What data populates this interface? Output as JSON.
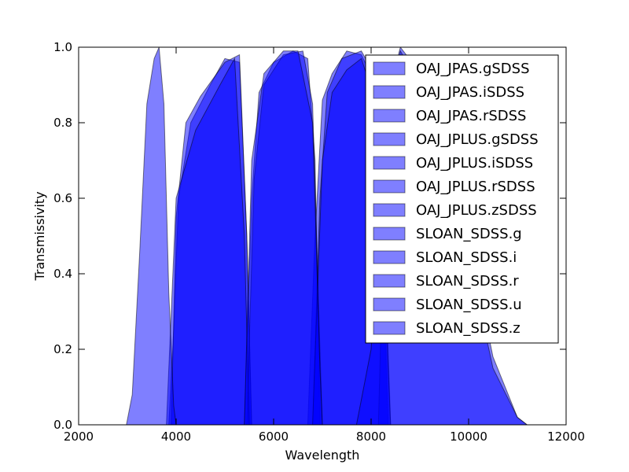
{
  "chart_data": {
    "type": "area",
    "xlabel": "Wavelength",
    "ylabel": "Transmissivity",
    "xlim": [
      2000,
      12000
    ],
    "ylim": [
      0,
      1.0
    ],
    "x_ticks": [
      2000,
      4000,
      6000,
      8000,
      10000,
      12000
    ],
    "x_tick_labels": [
      "2000",
      "4000",
      "6000",
      "8000",
      "10000",
      "12000"
    ],
    "y_ticks": [
      0,
      0.2,
      0.4,
      0.6,
      0.8,
      1.0
    ],
    "y_tick_labels": [
      "0.0",
      "0.2",
      "0.4",
      "0.6",
      "0.8",
      "1.0"
    ],
    "grid": false,
    "legend_position": "top-right",
    "fill_color": "#0000ff",
    "series": [
      {
        "name": "OAJ_JPAS.gSDSS",
        "points": [
          [
            3850,
            0
          ],
          [
            3950,
            0.25
          ],
          [
            4050,
            0.6
          ],
          [
            4300,
            0.8
          ],
          [
            4700,
            0.9
          ],
          [
            5000,
            0.97
          ],
          [
            5300,
            0.96
          ],
          [
            5450,
            0.5
          ],
          [
            5550,
            0
          ]
        ]
      },
      {
        "name": "OAJ_JPAS.iSDSS",
        "points": [
          [
            6700,
            0
          ],
          [
            6850,
            0.5
          ],
          [
            7000,
            0.86
          ],
          [
            7200,
            0.93
          ],
          [
            7500,
            0.99
          ],
          [
            7800,
            0.98
          ],
          [
            8100,
            0.9
          ],
          [
            8250,
            0.4
          ],
          [
            8350,
            0
          ]
        ]
      },
      {
        "name": "OAJ_JPAS.rSDSS",
        "points": [
          [
            5400,
            0
          ],
          [
            5550,
            0.6
          ],
          [
            5700,
            0.88
          ],
          [
            6000,
            0.96
          ],
          [
            6400,
            0.99
          ],
          [
            6700,
            0.97
          ],
          [
            6850,
            0.7
          ],
          [
            6950,
            0
          ]
        ]
      },
      {
        "name": "OAJ_JPLUS.gSDSS",
        "points": [
          [
            3900,
            0
          ],
          [
            4000,
            0.55
          ],
          [
            4200,
            0.8
          ],
          [
            4500,
            0.87
          ],
          [
            5000,
            0.96
          ],
          [
            5300,
            0.98
          ],
          [
            5450,
            0.5
          ],
          [
            5550,
            0
          ]
        ]
      },
      {
        "name": "OAJ_JPLUS.iSDSS",
        "points": [
          [
            6800,
            0
          ],
          [
            6950,
            0.6
          ],
          [
            7100,
            0.88
          ],
          [
            7400,
            0.97
          ],
          [
            7800,
            0.99
          ],
          [
            8100,
            0.92
          ],
          [
            8300,
            0.4
          ],
          [
            8400,
            0
          ]
        ]
      },
      {
        "name": "OAJ_JPLUS.rSDSS",
        "points": [
          [
            5450,
            0
          ],
          [
            5600,
            0.65
          ],
          [
            5800,
            0.9
          ],
          [
            6200,
            0.98
          ],
          [
            6600,
            0.99
          ],
          [
            6800,
            0.85
          ],
          [
            6950,
            0.2
          ],
          [
            7000,
            0
          ]
        ]
      },
      {
        "name": "OAJ_JPLUS.zSDSS",
        "points": [
          [
            8150,
            0
          ],
          [
            8250,
            0.5
          ],
          [
            8400,
            0.9
          ],
          [
            8600,
            1.0
          ],
          [
            8900,
            0.95
          ],
          [
            9500,
            0.82
          ],
          [
            10000,
            0.5
          ],
          [
            10500,
            0.18
          ],
          [
            11000,
            0.02
          ],
          [
            11200,
            0
          ]
        ]
      },
      {
        "name": "SLOAN_SDSS.g",
        "points": [
          [
            3800,
            0
          ],
          [
            3900,
            0.3
          ],
          [
            4000,
            0.6
          ],
          [
            4400,
            0.78
          ],
          [
            4900,
            0.9
          ],
          [
            5200,
            0.97
          ],
          [
            5400,
            0.5
          ],
          [
            5500,
            0
          ]
        ]
      },
      {
        "name": "SLOAN_SDSS.i",
        "points": [
          [
            6800,
            0
          ],
          [
            7000,
            0.7
          ],
          [
            7200,
            0.88
          ],
          [
            7500,
            0.94
          ],
          [
            7800,
            0.97
          ],
          [
            8100,
            0.85
          ],
          [
            8300,
            0.3
          ],
          [
            8400,
            0
          ]
        ]
      },
      {
        "name": "SLOAN_SDSS.r",
        "points": [
          [
            5400,
            0
          ],
          [
            5550,
            0.7
          ],
          [
            5800,
            0.93
          ],
          [
            6200,
            0.99
          ],
          [
            6500,
            0.99
          ],
          [
            6800,
            0.8
          ],
          [
            6950,
            0.15
          ],
          [
            7000,
            0
          ]
        ]
      },
      {
        "name": "SLOAN_SDSS.u",
        "points": [
          [
            2980,
            0
          ],
          [
            3100,
            0.08
          ],
          [
            3250,
            0.45
          ],
          [
            3400,
            0.85
          ],
          [
            3550,
            0.97
          ],
          [
            3650,
            1.0
          ],
          [
            3750,
            0.85
          ],
          [
            3850,
            0.35
          ],
          [
            3950,
            0.05
          ],
          [
            4000,
            0
          ]
        ]
      },
      {
        "name": "SLOAN_SDSS.z",
        "points": [
          [
            7700,
            0
          ],
          [
            8000,
            0.2
          ],
          [
            8300,
            0.8
          ],
          [
            8600,
            0.99
          ],
          [
            9000,
            0.9
          ],
          [
            9500,
            0.75
          ],
          [
            10000,
            0.45
          ],
          [
            10500,
            0.15
          ],
          [
            11000,
            0.02
          ],
          [
            11200,
            0
          ]
        ]
      }
    ]
  }
}
